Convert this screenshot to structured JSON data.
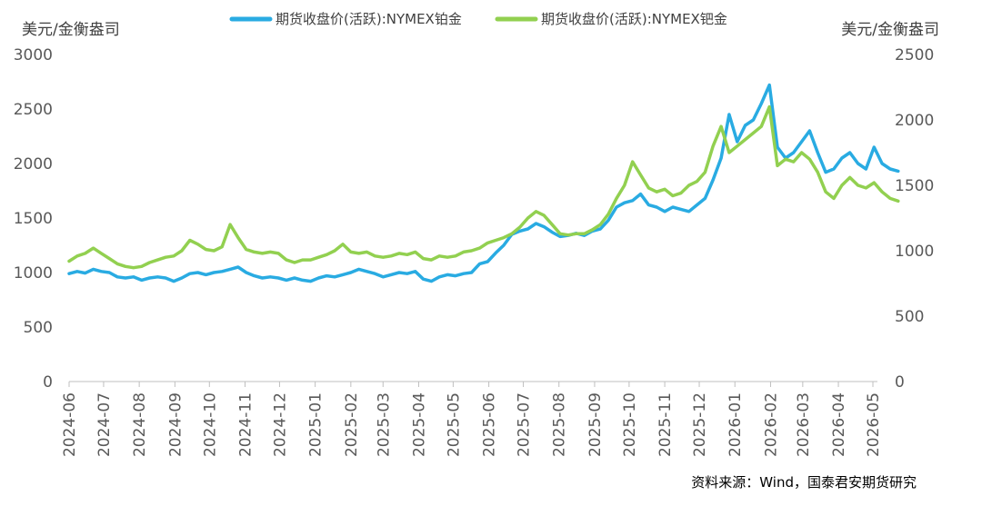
{
  "chart_data": {
    "type": "line",
    "y_left_unit": "美元/金衡盎司",
    "y_right_unit": "美元/金衡盎司",
    "y_left_ticks": [
      "3000",
      "2500",
      "2000",
      "1500",
      "1000",
      "500",
      "0"
    ],
    "y_right_ticks": [
      "2500",
      "2000",
      "1500",
      "1000",
      "500",
      "0"
    ],
    "y_left_lim": [
      0,
      3000
    ],
    "y_right_lim": [
      0,
      2500
    ],
    "x_ticks": [
      "2024-06",
      "2024-07",
      "2024-08",
      "2024-09",
      "2024-10",
      "2024-11",
      "2024-12",
      "2025-01",
      "2025-02",
      "2025-03",
      "2025-04",
      "2025-05",
      "2025-06",
      "2025-07",
      "2025-08",
      "2025-09",
      "2025-10",
      "2025-11",
      "2025-12",
      "2026-01",
      "2026-02",
      "2026-03",
      "2026-04",
      "2026-05"
    ],
    "x_start": "2024-06-01",
    "x_end": "2026-05-01",
    "grid": false,
    "legend_position": "top",
    "source": "资料来源：Wind，国泰君安期货研究",
    "series": [
      {
        "name": "期货收盘价(活跃):NYMEX铂金",
        "axis": "left",
        "color": "#29ABE2",
        "points": [
          [
            "2024-06-01",
            990
          ],
          [
            "2024-06-08",
            1010
          ],
          [
            "2024-06-15",
            995
          ],
          [
            "2024-06-22",
            1030
          ],
          [
            "2024-06-29",
            1010
          ],
          [
            "2024-07-06",
            1000
          ],
          [
            "2024-07-13",
            960
          ],
          [
            "2024-07-20",
            950
          ],
          [
            "2024-07-27",
            960
          ],
          [
            "2024-08-03",
            930
          ],
          [
            "2024-08-10",
            950
          ],
          [
            "2024-08-17",
            960
          ],
          [
            "2024-08-24",
            950
          ],
          [
            "2024-08-31",
            920
          ],
          [
            "2024-09-07",
            950
          ],
          [
            "2024-09-14",
            990
          ],
          [
            "2024-09-21",
            1000
          ],
          [
            "2024-09-28",
            980
          ],
          [
            "2024-10-05",
            1000
          ],
          [
            "2024-10-12",
            1010
          ],
          [
            "2024-10-19",
            1030
          ],
          [
            "2024-10-26",
            1050
          ],
          [
            "2024-11-02",
            1000
          ],
          [
            "2024-11-09",
            970
          ],
          [
            "2024-11-16",
            950
          ],
          [
            "2024-11-23",
            960
          ],
          [
            "2024-11-30",
            950
          ],
          [
            "2024-12-07",
            930
          ],
          [
            "2024-12-14",
            950
          ],
          [
            "2024-12-21",
            930
          ],
          [
            "2024-12-28",
            920
          ],
          [
            "2025-01-04",
            950
          ],
          [
            "2025-01-11",
            970
          ],
          [
            "2025-01-18",
            960
          ],
          [
            "2025-01-25",
            980
          ],
          [
            "2025-02-01",
            1000
          ],
          [
            "2025-02-08",
            1030
          ],
          [
            "2025-02-15",
            1010
          ],
          [
            "2025-02-22",
            990
          ],
          [
            "2025-03-01",
            960
          ],
          [
            "2025-03-08",
            980
          ],
          [
            "2025-03-15",
            1000
          ],
          [
            "2025-03-22",
            990
          ],
          [
            "2025-03-29",
            1010
          ],
          [
            "2025-04-05",
            940
          ],
          [
            "2025-04-12",
            920
          ],
          [
            "2025-04-19",
            960
          ],
          [
            "2025-04-26",
            980
          ],
          [
            "2025-05-03",
            970
          ],
          [
            "2025-05-10",
            990
          ],
          [
            "2025-05-17",
            1000
          ],
          [
            "2025-05-24",
            1080
          ],
          [
            "2025-05-31",
            1100
          ],
          [
            "2025-06-07",
            1180
          ],
          [
            "2025-06-14",
            1250
          ],
          [
            "2025-06-21",
            1350
          ],
          [
            "2025-06-28",
            1380
          ],
          [
            "2025-07-05",
            1400
          ],
          [
            "2025-07-12",
            1450
          ],
          [
            "2025-07-19",
            1420
          ],
          [
            "2025-07-26",
            1370
          ],
          [
            "2025-08-02",
            1330
          ],
          [
            "2025-08-09",
            1340
          ],
          [
            "2025-08-16",
            1360
          ],
          [
            "2025-08-23",
            1340
          ],
          [
            "2025-08-30",
            1380
          ],
          [
            "2025-09-06",
            1400
          ],
          [
            "2025-09-13",
            1480
          ],
          [
            "2025-09-20",
            1600
          ],
          [
            "2025-09-27",
            1640
          ],
          [
            "2025-10-04",
            1660
          ],
          [
            "2025-10-11",
            1720
          ],
          [
            "2025-10-18",
            1620
          ],
          [
            "2025-10-25",
            1600
          ],
          [
            "2025-11-01",
            1560
          ],
          [
            "2025-11-08",
            1600
          ],
          [
            "2025-11-15",
            1580
          ],
          [
            "2025-11-22",
            1560
          ],
          [
            "2025-11-29",
            1620
          ],
          [
            "2025-12-06",
            1680
          ],
          [
            "2025-12-13",
            1850
          ],
          [
            "2025-12-20",
            2050
          ],
          [
            "2025-12-27",
            2450
          ],
          [
            "2026-01-03",
            2200
          ],
          [
            "2026-01-10",
            2350
          ],
          [
            "2026-01-17",
            2400
          ],
          [
            "2026-01-24",
            2550
          ],
          [
            "2026-01-31",
            2720
          ],
          [
            "2026-02-07",
            2150
          ],
          [
            "2026-02-14",
            2050
          ],
          [
            "2026-02-21",
            2100
          ],
          [
            "2026-02-28",
            2200
          ],
          [
            "2026-03-07",
            2300
          ],
          [
            "2026-03-14",
            2100
          ],
          [
            "2026-03-21",
            1920
          ],
          [
            "2026-03-28",
            1950
          ],
          [
            "2026-04-04",
            2050
          ],
          [
            "2026-04-11",
            2100
          ],
          [
            "2026-04-18",
            2000
          ],
          [
            "2026-04-25",
            1950
          ],
          [
            "2026-05-02",
            2150
          ],
          [
            "2026-05-09",
            2000
          ],
          [
            "2026-05-16",
            1950
          ],
          [
            "2026-05-23",
            1930
          ]
        ]
      },
      {
        "name": "期货收盘价(活跃):NYMEX钯金",
        "axis": "right",
        "color": "#92D050",
        "points": [
          [
            "2024-06-01",
            920
          ],
          [
            "2024-06-08",
            960
          ],
          [
            "2024-06-15",
            980
          ],
          [
            "2024-06-22",
            1020
          ],
          [
            "2024-06-29",
            980
          ],
          [
            "2024-07-06",
            940
          ],
          [
            "2024-07-13",
            900
          ],
          [
            "2024-07-20",
            880
          ],
          [
            "2024-07-27",
            870
          ],
          [
            "2024-08-03",
            880
          ],
          [
            "2024-08-10",
            910
          ],
          [
            "2024-08-17",
            930
          ],
          [
            "2024-08-24",
            950
          ],
          [
            "2024-08-31",
            960
          ],
          [
            "2024-09-07",
            1000
          ],
          [
            "2024-09-14",
            1080
          ],
          [
            "2024-09-21",
            1050
          ],
          [
            "2024-09-28",
            1010
          ],
          [
            "2024-10-05",
            1000
          ],
          [
            "2024-10-12",
            1030
          ],
          [
            "2024-10-19",
            1200
          ],
          [
            "2024-10-26",
            1100
          ],
          [
            "2024-11-02",
            1010
          ],
          [
            "2024-11-09",
            990
          ],
          [
            "2024-11-16",
            980
          ],
          [
            "2024-11-23",
            990
          ],
          [
            "2024-11-30",
            980
          ],
          [
            "2024-12-07",
            930
          ],
          [
            "2024-12-14",
            910
          ],
          [
            "2024-12-21",
            930
          ],
          [
            "2024-12-28",
            930
          ],
          [
            "2025-01-04",
            950
          ],
          [
            "2025-01-11",
            970
          ],
          [
            "2025-01-18",
            1000
          ],
          [
            "2025-01-25",
            1050
          ],
          [
            "2025-02-01",
            990
          ],
          [
            "2025-02-08",
            980
          ],
          [
            "2025-02-15",
            990
          ],
          [
            "2025-02-22",
            960
          ],
          [
            "2025-03-01",
            950
          ],
          [
            "2025-03-08",
            960
          ],
          [
            "2025-03-15",
            980
          ],
          [
            "2025-03-22",
            970
          ],
          [
            "2025-03-29",
            990
          ],
          [
            "2025-04-05",
            940
          ],
          [
            "2025-04-12",
            930
          ],
          [
            "2025-04-19",
            960
          ],
          [
            "2025-04-26",
            950
          ],
          [
            "2025-05-03",
            960
          ],
          [
            "2025-05-10",
            990
          ],
          [
            "2025-05-17",
            1000
          ],
          [
            "2025-05-24",
            1020
          ],
          [
            "2025-05-31",
            1060
          ],
          [
            "2025-06-07",
            1080
          ],
          [
            "2025-06-14",
            1100
          ],
          [
            "2025-06-21",
            1130
          ],
          [
            "2025-06-28",
            1180
          ],
          [
            "2025-07-05",
            1250
          ],
          [
            "2025-07-12",
            1300
          ],
          [
            "2025-07-19",
            1270
          ],
          [
            "2025-07-26",
            1200
          ],
          [
            "2025-08-02",
            1130
          ],
          [
            "2025-08-09",
            1120
          ],
          [
            "2025-08-16",
            1130
          ],
          [
            "2025-08-23",
            1130
          ],
          [
            "2025-08-30",
            1160
          ],
          [
            "2025-09-06",
            1200
          ],
          [
            "2025-09-13",
            1280
          ],
          [
            "2025-09-20",
            1400
          ],
          [
            "2025-09-27",
            1500
          ],
          [
            "2025-10-04",
            1680
          ],
          [
            "2025-10-11",
            1580
          ],
          [
            "2025-10-18",
            1480
          ],
          [
            "2025-10-25",
            1450
          ],
          [
            "2025-11-01",
            1470
          ],
          [
            "2025-11-08",
            1420
          ],
          [
            "2025-11-15",
            1440
          ],
          [
            "2025-11-22",
            1500
          ],
          [
            "2025-11-29",
            1530
          ],
          [
            "2025-12-06",
            1600
          ],
          [
            "2025-12-13",
            1800
          ],
          [
            "2025-12-20",
            1950
          ],
          [
            "2025-12-27",
            1750
          ],
          [
            "2026-01-03",
            1800
          ],
          [
            "2026-01-10",
            1850
          ],
          [
            "2026-01-17",
            1900
          ],
          [
            "2026-01-24",
            1950
          ],
          [
            "2026-01-31",
            2100
          ],
          [
            "2026-02-07",
            1650
          ],
          [
            "2026-02-14",
            1700
          ],
          [
            "2026-02-21",
            1680
          ],
          [
            "2026-02-28",
            1750
          ],
          [
            "2026-03-07",
            1700
          ],
          [
            "2026-03-14",
            1600
          ],
          [
            "2026-03-21",
            1450
          ],
          [
            "2026-03-28",
            1400
          ],
          [
            "2026-04-04",
            1500
          ],
          [
            "2026-04-11",
            1560
          ],
          [
            "2026-04-18",
            1500
          ],
          [
            "2026-04-25",
            1480
          ],
          [
            "2026-05-02",
            1520
          ],
          [
            "2026-05-09",
            1450
          ],
          [
            "2026-05-16",
            1400
          ],
          [
            "2026-05-23",
            1380
          ]
        ]
      }
    ]
  }
}
